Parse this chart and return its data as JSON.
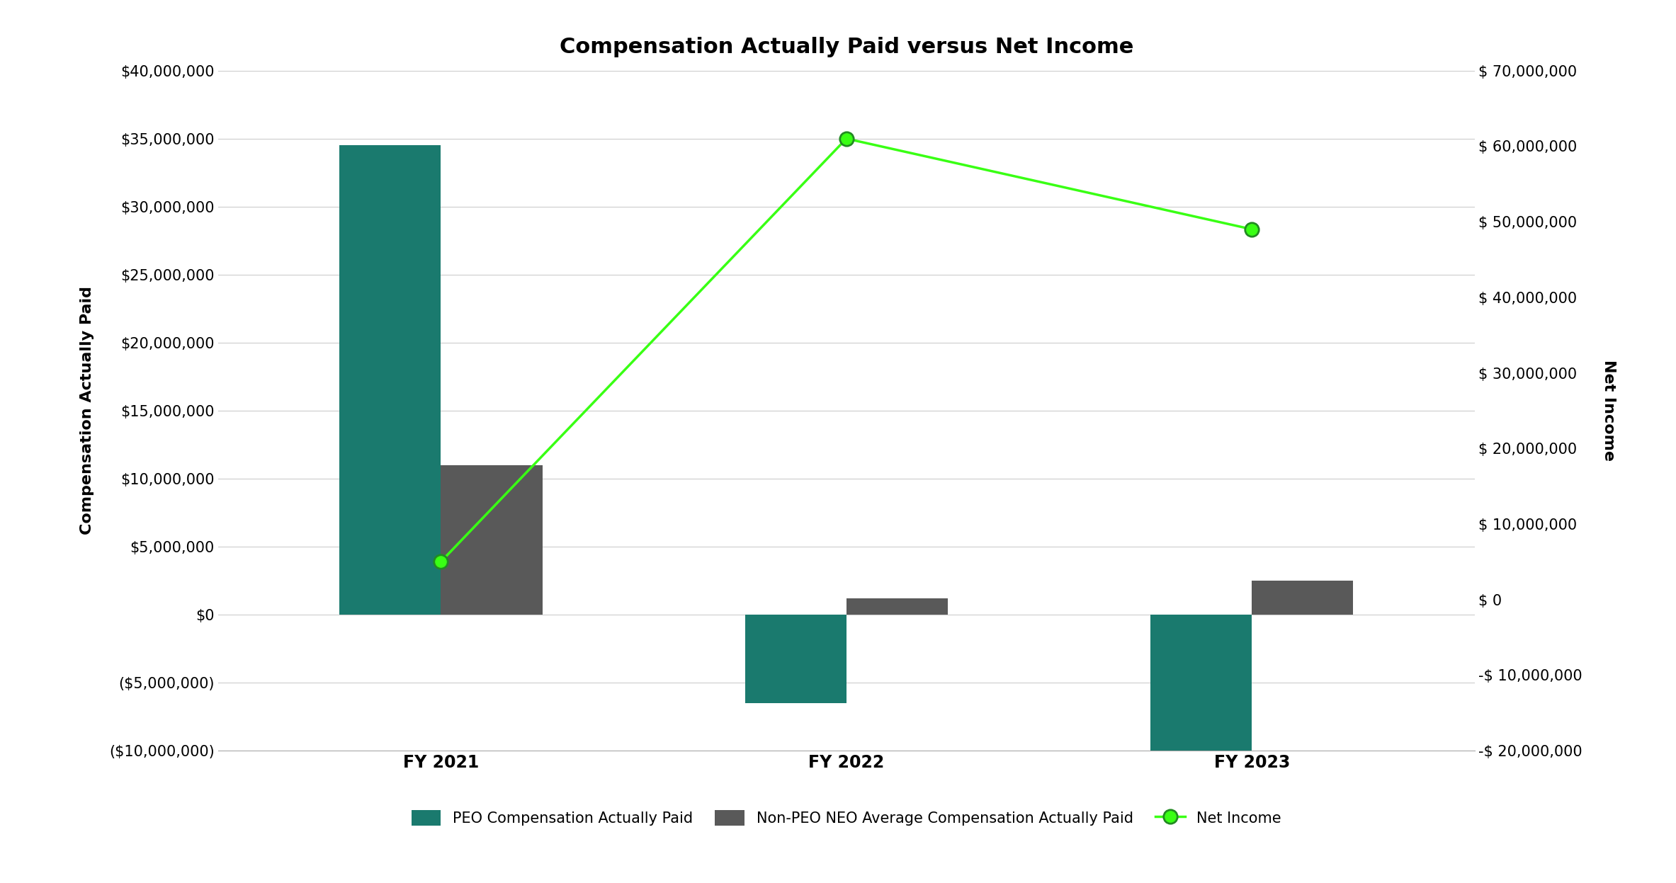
{
  "title": "Compensation Actually Paid versus Net Income",
  "categories": [
    "FY 2021",
    "FY 2022",
    "FY 2023"
  ],
  "peo_comp": [
    34500000,
    -6500000,
    -10000000
  ],
  "neo_avg_comp": [
    11000000,
    1200000,
    2500000
  ],
  "net_income": [
    5000000,
    61000000,
    49000000
  ],
  "left_ylim": [
    -10000000,
    40000000
  ],
  "right_ylim": [
    -20000000,
    70000000
  ],
  "left_yticks": [
    -10000000,
    -5000000,
    0,
    5000000,
    10000000,
    15000000,
    20000000,
    25000000,
    30000000,
    35000000,
    40000000
  ],
  "right_yticks": [
    -20000000,
    -10000000,
    0,
    10000000,
    20000000,
    30000000,
    40000000,
    50000000,
    60000000,
    70000000
  ],
  "peo_color": "#1a7a6e",
  "neo_color": "#595959",
  "net_income_color": "#39ff14",
  "net_income_marker_edge_color": "#228B22",
  "background_color": "#ffffff",
  "ylabel_left": "Compensation Actually Paid",
  "ylabel_right": "Net Income",
  "legend_peo": "PEO Compensation Actually Paid",
  "legend_neo": "Non-PEO NEO Average Compensation Actually Paid",
  "legend_net_income": "Net Income",
  "bar_width": 0.25,
  "title_fontsize": 22,
  "axis_label_fontsize": 16,
  "tick_fontsize": 15,
  "legend_fontsize": 15,
  "xlabel_fontsize": 17
}
